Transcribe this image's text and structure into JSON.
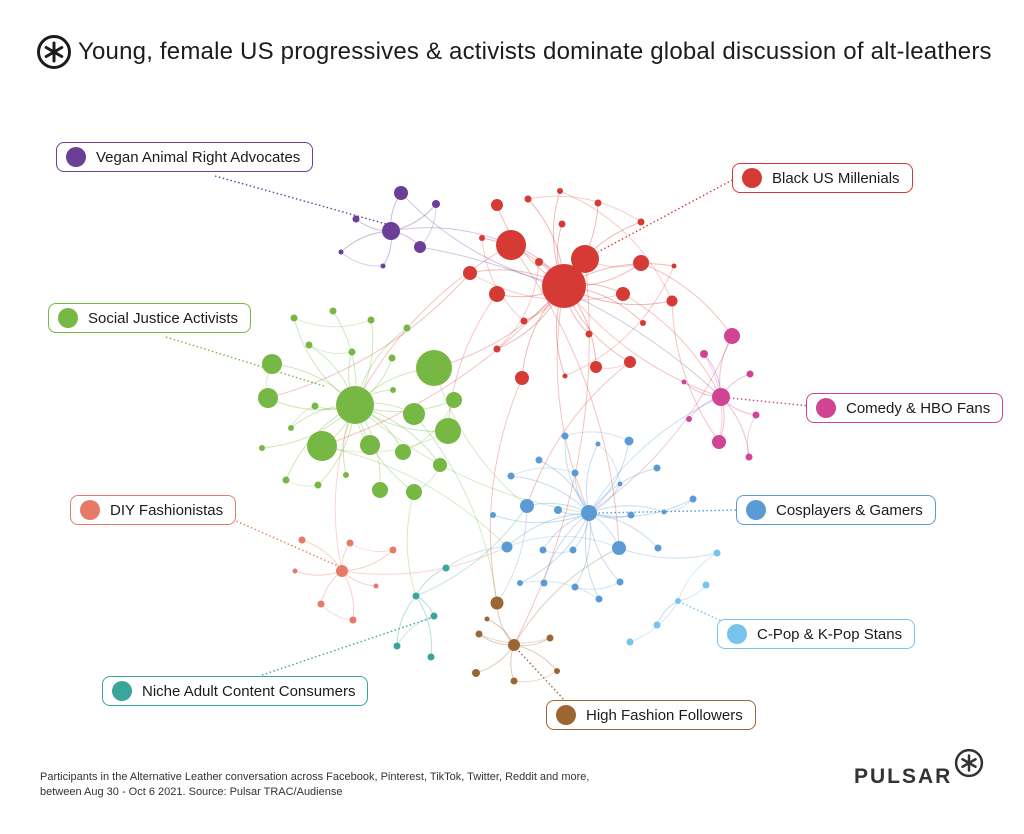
{
  "header": {
    "logo_icon": "pulsar-asterisk-icon",
    "title": "Young, female US progressives & activists dominate global discussion of alt-leathers"
  },
  "communities": [
    {
      "key": "vegan",
      "label": "Vegan Animal Right Advocates",
      "color": "#6b3f97"
    },
    {
      "key": "black",
      "label": "Black US Millenials",
      "color": "#d63a35"
    },
    {
      "key": "sja",
      "label": "Social Justice Activists",
      "color": "#76b843"
    },
    {
      "key": "comedy",
      "label": "Comedy & HBO Fans",
      "color": "#cf4594"
    },
    {
      "key": "diy",
      "label": "DIY Fashionistas",
      "color": "#e57b67"
    },
    {
      "key": "cos",
      "label": "Cosplayers & Gamers",
      "color": "#5b9bd5"
    },
    {
      "key": "kpop",
      "label": "C-Pop & K-Pop Stans",
      "color": "#76c4ec"
    },
    {
      "key": "niche",
      "label": "Niche Adult Content Consumers",
      "color": "#3aa69b"
    },
    {
      "key": "fashion",
      "label": "High Fashion Followers",
      "color": "#9c6632"
    }
  ],
  "footnote": {
    "line1": "Participants in the Alternative Leather conversation across Facebook, Pinterest, TikTok, Twitter, Reddit and more,",
    "line2": "between Aug 30 - Oct 6 2021. Source: Pulsar TRAC/Audiense"
  },
  "brand": {
    "name": "PULSAR",
    "logo_icon": "pulsar-asterisk-icon"
  }
}
